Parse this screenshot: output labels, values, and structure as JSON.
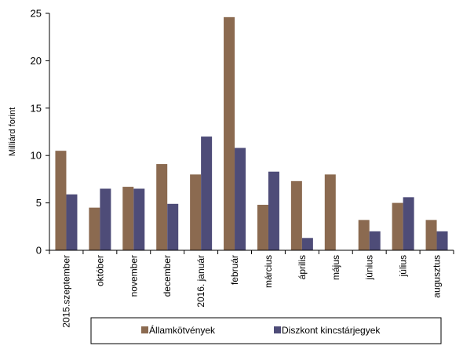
{
  "chart_data": {
    "type": "bar",
    "ylabel": "Milliárd forint",
    "ylim": [
      0,
      25
    ],
    "yticks": [
      0,
      5,
      10,
      15,
      20,
      25
    ],
    "grid": false,
    "legend_position": "bottom",
    "categories": [
      "2015.szeptember",
      "október",
      "november",
      "december",
      "2016. január",
      "február",
      "március",
      "április",
      "május",
      "június",
      "július",
      "augusztus"
    ],
    "series": [
      {
        "name": "Államkötvények",
        "color": "#8b6a50",
        "values": [
          10.5,
          4.5,
          6.7,
          9.1,
          8.0,
          24.6,
          4.8,
          7.3,
          8.0,
          3.2,
          5.0,
          3.2
        ]
      },
      {
        "name": "Diszkont kincstárjegyek",
        "color": "#4e4c78",
        "values": [
          5.9,
          6.5,
          6.5,
          4.9,
          12.0,
          10.8,
          8.3,
          1.3,
          0.0,
          2.0,
          5.6,
          2.0
        ]
      }
    ]
  }
}
